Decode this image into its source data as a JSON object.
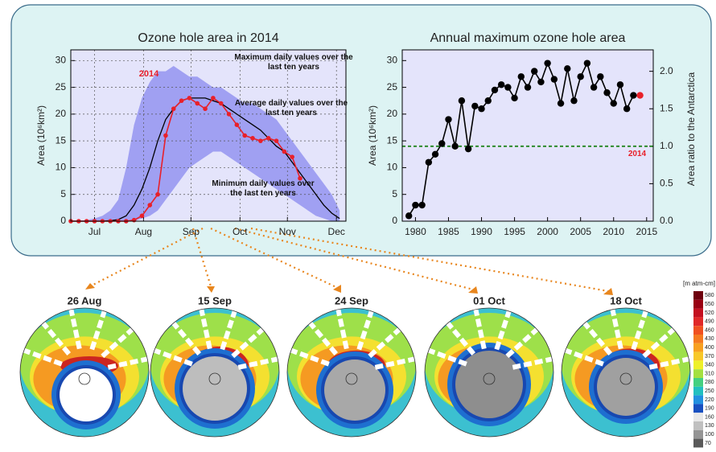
{
  "chart_data": [
    {
      "type": "line",
      "title": "Ozone hole area in 2014",
      "ylabel": "Area (10⁶km²)",
      "x": [
        182,
        187,
        192,
        197,
        202,
        207,
        212,
        217,
        222,
        227,
        232,
        237,
        242,
        247,
        252,
        257,
        262,
        267,
        272,
        277,
        282,
        287,
        292,
        297,
        302,
        307,
        312,
        317,
        322,
        327,
        332,
        337,
        342,
        347,
        352
      ],
      "xlim": [
        182,
        356
      ],
      "xticks": [
        {
          "value": 197,
          "label": "Jul"
        },
        {
          "value": 228,
          "label": "Aug"
        },
        {
          "value": 258,
          "label": "Sep"
        },
        {
          "value": 289,
          "label": "Oct"
        },
        {
          "value": 319,
          "label": "Nov"
        },
        {
          "value": 350,
          "label": "Dec"
        }
      ],
      "ylim": [
        0,
        32
      ],
      "yticks": [
        0,
        5,
        10,
        15,
        20,
        25,
        30
      ],
      "grid": true,
      "plot_background": "#e4e4fb",
      "series": [
        {
          "name": "Maximum daily values over the last ten years",
          "color": "#a0a0f2",
          "style": "area",
          "values": [
            0,
            0,
            0.2,
            0.5,
            1,
            2,
            4,
            10,
            18,
            23,
            26,
            28,
            28,
            29,
            28,
            27,
            27,
            26,
            25,
            25,
            24,
            23,
            22,
            22,
            21,
            20,
            19,
            17,
            15,
            13,
            11,
            9,
            7,
            5,
            2
          ]
        },
        {
          "name": "Minimum daily values over the last ten years",
          "color": "#e4e4fb",
          "style": "area",
          "values": [
            0,
            0,
            0,
            0,
            0,
            0,
            0,
            0,
            0,
            0.5,
            1,
            2,
            4,
            6,
            8,
            10,
            11,
            12,
            13,
            13,
            12,
            11,
            10,
            9,
            8,
            7,
            6,
            5,
            4,
            3,
            2,
            1,
            0.5,
            0,
            0
          ]
        },
        {
          "name": "Average daily values over the last ten years",
          "color": "#000000",
          "style": "line",
          "values": [
            0,
            0,
            0,
            0,
            0,
            0.1,
            0.3,
            1,
            3,
            6,
            10,
            15,
            19,
            21,
            22.5,
            23,
            23,
            23,
            22.5,
            22,
            21,
            20,
            19,
            18,
            17,
            15.5,
            14,
            13,
            11,
            9,
            7,
            5,
            3,
            1.5,
            0.5
          ]
        },
        {
          "name": "2014",
          "color": "#e8202a",
          "style": "line+markers",
          "values": [
            0,
            0,
            0,
            0,
            0,
            0,
            0,
            0,
            0.2,
            1,
            3,
            5,
            16,
            21,
            22.5,
            23,
            22,
            21,
            23,
            22,
            20,
            18,
            16,
            15.5,
            15,
            15.5,
            15,
            13,
            12,
            8,
            null,
            null,
            null,
            null,
            null
          ]
        }
      ]
    },
    {
      "type": "line",
      "title": "Annual maximum ozone hole area",
      "ylabel": "Area (10⁶km²)",
      "y2label": "Area ratio to the Antarctica",
      "x": [
        1979,
        1980,
        1981,
        1982,
        1983,
        1984,
        1985,
        1986,
        1987,
        1988,
        1989,
        1990,
        1991,
        1992,
        1993,
        1994,
        1995,
        1996,
        1997,
        1998,
        1999,
        2000,
        2001,
        2002,
        2003,
        2004,
        2005,
        2006,
        2007,
        2008,
        2009,
        2010,
        2011,
        2012,
        2013,
        2014
      ],
      "xlim": [
        1978,
        2016
      ],
      "xticks": [
        1980,
        1985,
        1990,
        1995,
        2000,
        2005,
        2010,
        2015
      ],
      "ylim": [
        0,
        32
      ],
      "yticks": [
        0,
        5,
        10,
        15,
        20,
        25,
        30
      ],
      "y2lim": [
        0,
        2.286
      ],
      "y2ticks": [
        {
          "value": 0,
          "label": "0.0"
        },
        {
          "value": 0.5,
          "label": "0.5"
        },
        {
          "value": 1,
          "label": "1.0"
        },
        {
          "value": 1.5,
          "label": "1.5"
        },
        {
          "value": 2,
          "label": "2.0"
        }
      ],
      "grid": false,
      "plot_background": "#e4e4fb",
      "reference_line": {
        "value": 14,
        "color": "#2e8b2e"
      },
      "series": [
        {
          "color": "#000000",
          "style": "line+markers",
          "values": [
            1,
            3,
            3,
            11,
            12.5,
            14.5,
            19,
            14,
            22.5,
            13.5,
            21.5,
            21,
            22.5,
            24.5,
            25.5,
            25,
            23,
            27,
            25,
            28,
            26,
            29.5,
            26.5,
            22,
            28.5,
            22.5,
            27,
            29.5,
            25,
            27,
            24,
            22,
            25.5,
            21,
            23.5,
            null
          ]
        },
        {
          "name": "2014",
          "color": "#e8202a",
          "style": "markers",
          "values": [
            null,
            null,
            null,
            null,
            null,
            null,
            null,
            null,
            null,
            null,
            null,
            null,
            null,
            null,
            null,
            null,
            null,
            null,
            null,
            null,
            null,
            null,
            null,
            null,
            null,
            null,
            null,
            null,
            null,
            null,
            null,
            null,
            null,
            null,
            null,
            23.5
          ]
        }
      ]
    }
  ],
  "maps": [
    {
      "date": "26 Aug"
    },
    {
      "date": "15 Sep"
    },
    {
      "date": "24 Sep"
    },
    {
      "date": "01 Oct"
    },
    {
      "date": "18 Oct"
    }
  ],
  "colorbar": {
    "unit": "[m atm-cm]",
    "ticks": [
      580,
      550,
      520,
      490,
      460,
      430,
      400,
      370,
      340,
      310,
      280,
      250,
      220,
      190,
      160,
      130,
      100,
      70
    ],
    "colors": [
      "#6e000e",
      "#9a0012",
      "#c41020",
      "#e02828",
      "#f05020",
      "#f57a20",
      "#f8a020",
      "#f8c828",
      "#eef02a",
      "#a4e040",
      "#44d080",
      "#22c0c0",
      "#2290e0",
      "#1850c0",
      "#e8e8e8",
      "#c0c0c0",
      "#949494",
      "#5a5a5a"
    ]
  }
}
